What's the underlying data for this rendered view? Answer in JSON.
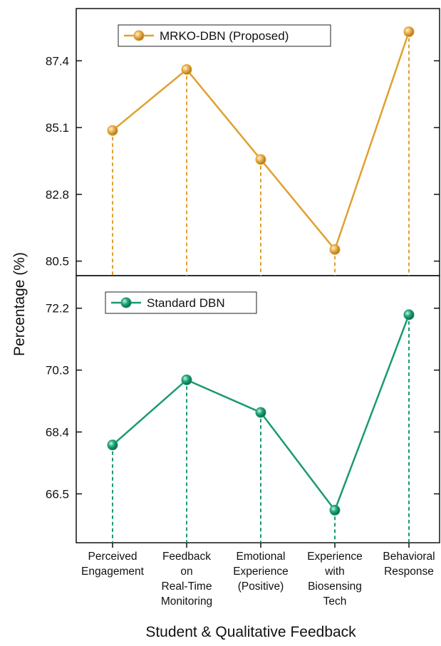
{
  "chart_data": {
    "type": "line",
    "xlabel": "Student & Qualitative Feedback",
    "ylabel": "Percentage (%)",
    "categories": [
      [
        "Perceived",
        "Engagement"
      ],
      [
        "Feedback",
        "on",
        "Real-Time",
        "Monitoring"
      ],
      [
        "Emotional",
        "Experience",
        "(Positive)"
      ],
      [
        "Experience",
        "with",
        "Biosensing",
        "Tech"
      ],
      [
        "Behavioral",
        "Response"
      ]
    ],
    "panels": [
      {
        "series": [
          {
            "name": "MRKO-DBN (Proposed)",
            "values": [
              85.0,
              87.1,
              84.0,
              80.9,
              88.4
            ],
            "color": "#E0A030"
          }
        ],
        "yticks": [
          80.5,
          82.8,
          85.1,
          87.4
        ],
        "ylim": [
          80.0,
          89.2
        ],
        "legend_position": "top-left"
      },
      {
        "series": [
          {
            "name": "Standard DBN",
            "values": [
              68.0,
              70.0,
              69.0,
              66.0,
              72.0
            ],
            "color": "#1A9A70"
          }
        ],
        "yticks": [
          66.5,
          68.4,
          70.3,
          72.2
        ],
        "ylim": [
          65.0,
          73.2
        ],
        "legend_position": "top-left"
      }
    ],
    "grid": false,
    "drop_lines": true
  }
}
